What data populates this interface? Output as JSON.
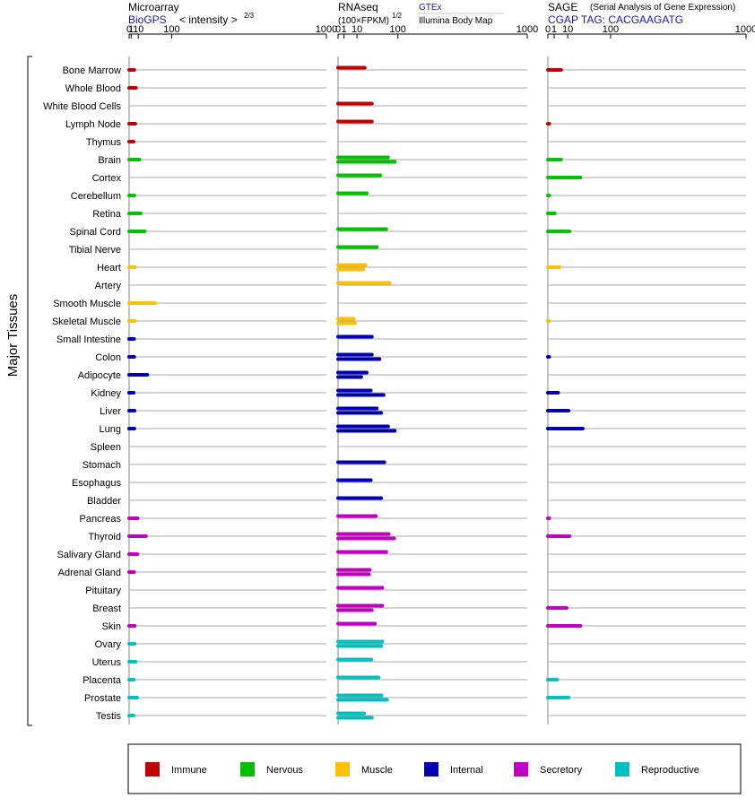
{
  "panels": [
    {
      "id": "microarray",
      "title": "Microarray",
      "subtitle": "BioGPS",
      "scale_label": "< intensity >",
      "scale_exponent": "2/3",
      "source_name": "",
      "source_detail": "",
      "ticks": [
        "0",
        "1",
        "10",
        "100",
        "1000"
      ]
    },
    {
      "id": "rnaseq",
      "title": "RNAseq",
      "subtitle": "(100×FPKM)",
      "scale_label": "",
      "scale_exponent": "1/2",
      "source_name": "GTEx",
      "source_detail": "Illumina Body Map",
      "ticks": [
        "0",
        "1",
        "10",
        "100",
        "1000"
      ]
    },
    {
      "id": "sage",
      "title": "SAGE",
      "subtitle": "CGAP TAG: CACGAAGATG",
      "scale_label": "",
      "scale_exponent": "",
      "source_name": "(Serial Analysis of Gene Expression)",
      "source_detail": "",
      "ticks": [
        "0",
        "1",
        "10",
        "100",
        "1000"
      ]
    }
  ],
  "y_axis_title": "Major Tissues",
  "colors": {
    "Immune": "#c00000",
    "Nervous": "#00c000",
    "Muscle": "#ffc000",
    "Internal": "#0000b0",
    "Secretory": "#c000c0",
    "Reproductive": "#00c0c0"
  },
  "legend": [
    {
      "label": "Immune",
      "color": "#c00000"
    },
    {
      "label": "Nervous",
      "color": "#00c000"
    },
    {
      "label": "Muscle",
      "color": "#ffc000"
    },
    {
      "label": "Internal",
      "color": "#0000b0"
    },
    {
      "label": "Secretory",
      "color": "#c000c0"
    },
    {
      "label": "Reproductive",
      "color": "#00c0c0"
    }
  ],
  "chart_data": {
    "type": "bar",
    "orientation": "horizontal",
    "x_scale": "power",
    "xlim": [
      0,
      1000
    ],
    "categories": [
      "Bone Marrow",
      "Whole Blood",
      "White Blood Cells",
      "Lymph Node",
      "Thymus",
      "Brain",
      "Cortex",
      "Cerebellum",
      "Retina",
      "Spinal Cord",
      "Tibial Nerve",
      "Heart",
      "Artery",
      "Smooth Muscle",
      "Skeletal Muscle",
      "Small Intestine",
      "Colon",
      "Adipocyte",
      "Kidney",
      "Liver",
      "Lung",
      "Spleen",
      "Stomach",
      "Esophagus",
      "Bladder",
      "Pancreas",
      "Thyroid",
      "Salivary Gland",
      "Adrenal Gland",
      "Pituitary",
      "Breast",
      "Skin",
      "Ovary",
      "Uterus",
      "Placenta",
      "Prostate",
      "Testis"
    ],
    "groups": [
      "Immune",
      "Immune",
      "Immune",
      "Immune",
      "Immune",
      "Nervous",
      "Nervous",
      "Nervous",
      "Nervous",
      "Nervous",
      "Nervous",
      "Muscle",
      "Muscle",
      "Muscle",
      "Muscle",
      "Internal",
      "Internal",
      "Internal",
      "Internal",
      "Internal",
      "Internal",
      "Internal",
      "Internal",
      "Internal",
      "Internal",
      "Secretory",
      "Secretory",
      "Secretory",
      "Secretory",
      "Secretory",
      "Secretory",
      "Secretory",
      "Reproductive",
      "Reproductive",
      "Reproductive",
      "Reproductive",
      "Reproductive"
    ],
    "microarray": [
      4.2,
      6.5,
      null,
      5.5,
      3.5,
      12,
      null,
      4.3,
      14,
      22,
      null,
      5,
      null,
      48,
      4.8,
      4,
      4.2,
      28,
      3.6,
      4.6,
      4.3,
      null,
      null,
      null,
      null,
      9,
      25,
      8.5,
      4,
      null,
      null,
      4.8,
      4.8,
      5.8,
      3.6,
      8.2,
      3.5
    ],
    "rnaseq_gtex": [
      20,
      null,
      32,
      32,
      null,
      70,
      50,
      23,
      null,
      65,
      42,
      21,
      75,
      null,
      7,
      32,
      32,
      23,
      30,
      42,
      70,
      null,
      60,
      30,
      52,
      40,
      72,
      65,
      28,
      55,
      55,
      38,
      55,
      31,
      46,
      53,
      19
    ],
    "rnaseq_ibm": [
      null,
      null,
      null,
      null,
      null,
      90,
      null,
      null,
      null,
      null,
      null,
      18,
      null,
      null,
      8,
      null,
      48,
      15,
      58,
      52,
      90,
      null,
      null,
      null,
      null,
      null,
      88,
      null,
      27,
      null,
      32,
      null,
      52,
      null,
      null,
      67,
      32
    ],
    "sage": [
      4.5,
      null,
      null,
      0.05,
      null,
      4.5,
      27,
      0.05,
      1.2,
      12,
      null,
      3.5,
      null,
      null,
      0.03,
      null,
      0.03,
      null,
      2.7,
      11,
      31,
      null,
      null,
      null,
      null,
      0.03,
      12,
      null,
      null,
      null,
      9,
      27,
      null,
      null,
      2.2,
      11,
      null
    ]
  }
}
